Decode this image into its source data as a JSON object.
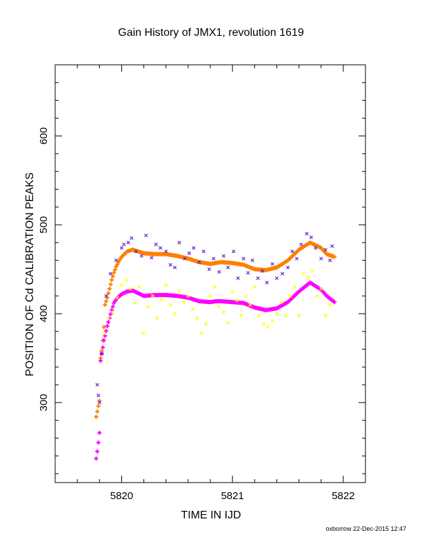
{
  "chart_data": {
    "type": "scatter",
    "title": "Gain History of JMX1, revolution 1619",
    "xlabel": "TIME IN IJD",
    "ylabel": "POSITION OF Cd CALIBRATION PEAKS",
    "xlim": [
      5819.4,
      5822.2
    ],
    "ylim": [
      210,
      680
    ],
    "xticks": [
      5820,
      5821,
      5822
    ],
    "yticks": [
      300,
      400,
      500,
      600
    ],
    "x_minor_step": 0.2,
    "y_minor_step": 20,
    "footer": "oxborrow 22-Dec-2015 12:47",
    "colors": {
      "upper_points": "#6a1fd0",
      "lower_points": "#ffff00",
      "upper_fit": "#ff7f00",
      "lower_fit": "#ff00ff"
    },
    "series": [
      {
        "key": "upper_fit",
        "marker": "plus",
        "x": [
          5819.77,
          5819.78,
          5819.79,
          5819.8,
          5819.81,
          5819.82,
          5819.83,
          5819.84,
          5819.85,
          5819.87,
          5819.89,
          5819.91,
          5819.93,
          5819.95,
          5819.98,
          5820.0,
          5820.05,
          5820.1,
          5820.2,
          5820.3,
          5820.4,
          5820.5,
          5820.6,
          5820.7,
          5820.8,
          5820.85,
          5820.9,
          5821.0,
          5821.1,
          5821.2,
          5821.3,
          5821.4,
          5821.5,
          5821.6,
          5821.7,
          5821.8,
          5821.85,
          5821.92
        ],
        "y": [
          284,
          290,
          296,
          302,
          350,
          358,
          370,
          385,
          410,
          418,
          428,
          438,
          446,
          453,
          460,
          464,
          470,
          472,
          468,
          467,
          467,
          465,
          462,
          458,
          456,
          457,
          458,
          457,
          455,
          450,
          449,
          452,
          460,
          472,
          480,
          474,
          467,
          464
        ]
      },
      {
        "key": "lower_fit",
        "marker": "plus",
        "x": [
          5819.77,
          5819.78,
          5819.79,
          5819.8,
          5819.81,
          5819.82,
          5819.83,
          5819.84,
          5819.85,
          5819.87,
          5819.89,
          5819.91,
          5819.93,
          5819.95,
          5819.98,
          5820.0,
          5820.05,
          5820.1,
          5820.2,
          5820.3,
          5820.4,
          5820.5,
          5820.6,
          5820.7,
          5820.8,
          5820.85,
          5820.9,
          5821.0,
          5821.1,
          5821.2,
          5821.3,
          5821.4,
          5821.5,
          5821.6,
          5821.7,
          5821.8,
          5821.85,
          5821.92
        ],
        "y": [
          237,
          245,
          255,
          266,
          347,
          355,
          362,
          370,
          375,
          386,
          395,
          404,
          412,
          416,
          420,
          422,
          425,
          426,
          420,
          421,
          421,
          420,
          418,
          414,
          413,
          414,
          414,
          413,
          412,
          407,
          404,
          406,
          413,
          425,
          435,
          427,
          420,
          413
        ]
      },
      {
        "key": "upper_points",
        "marker": "cross",
        "x": [
          5819.78,
          5819.79,
          5819.8,
          5819.82,
          5819.86,
          5819.9,
          5819.95,
          5820.0,
          5820.02,
          5820.06,
          5820.09,
          5820.13,
          5820.18,
          5820.22,
          5820.27,
          5820.31,
          5820.35,
          5820.4,
          5820.44,
          5820.48,
          5820.52,
          5820.57,
          5820.61,
          5820.65,
          5820.7,
          5820.74,
          5820.79,
          5820.83,
          5820.88,
          5820.92,
          5820.96,
          5821.01,
          5821.05,
          5821.1,
          5821.14,
          5821.18,
          5821.23,
          5821.27,
          5821.31,
          5821.36,
          5821.4,
          5821.45,
          5821.5,
          5821.54,
          5821.58,
          5821.62,
          5821.67,
          5821.71,
          5821.75,
          5821.8,
          5821.84,
          5821.88,
          5821.9
        ],
        "y": [
          320,
          308,
          300,
          355,
          420,
          445,
          460,
          474,
          478,
          480,
          485,
          470,
          465,
          488,
          463,
          478,
          474,
          470,
          455,
          452,
          480,
          462,
          468,
          474,
          458,
          470,
          450,
          462,
          447,
          465,
          452,
          470,
          440,
          462,
          446,
          460,
          440,
          448,
          435,
          456,
          440,
          445,
          452,
          470,
          462,
          478,
          490,
          486,
          474,
          462,
          472,
          460,
          476
        ]
      },
      {
        "key": "lower_points",
        "marker": "cross",
        "x": [
          5819.84,
          5819.88,
          5819.92,
          5819.96,
          5820.0,
          5820.04,
          5820.08,
          5820.12,
          5820.16,
          5820.2,
          5820.24,
          5820.28,
          5820.32,
          5820.36,
          5820.4,
          5820.44,
          5820.48,
          5820.52,
          5820.56,
          5820.6,
          5820.64,
          5820.68,
          5820.72,
          5820.76,
          5820.8,
          5820.84,
          5820.88,
          5820.92,
          5820.96,
          5821.0,
          5821.04,
          5821.08,
          5821.12,
          5821.16,
          5821.2,
          5821.24,
          5821.28,
          5821.32,
          5821.36,
          5821.4,
          5821.44,
          5821.48,
          5821.52,
          5821.56,
          5821.6,
          5821.64,
          5821.68,
          5821.72,
          5821.76,
          5821.8,
          5821.84,
          5821.88
        ],
        "y": [
          378,
          395,
          402,
          418,
          432,
          438,
          428,
          412,
          430,
          378,
          408,
          420,
          395,
          416,
          432,
          410,
          400,
          425,
          413,
          420,
          405,
          395,
          378,
          388,
          420,
          430,
          408,
          402,
          390,
          425,
          415,
          398,
          420,
          410,
          430,
          398,
          388,
          385,
          392,
          400,
          413,
          398,
          420,
          430,
          398,
          445,
          440,
          448,
          420,
          428,
          398,
          410
        ]
      }
    ]
  }
}
